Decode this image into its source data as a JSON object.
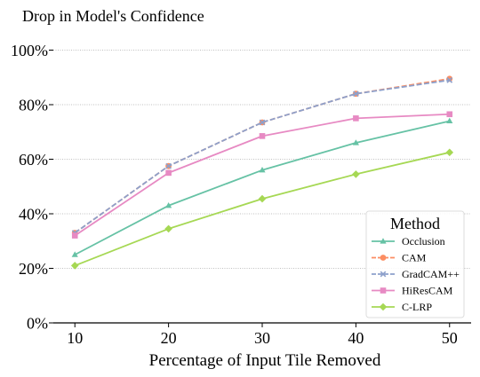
{
  "chart_data": {
    "type": "line",
    "title": "Drop in Model's Confidence",
    "xlabel": "Percentage of Input Tile Removed",
    "ylabel": "",
    "x": [
      10,
      20,
      30,
      40,
      50
    ],
    "x_ticks": [
      "10",
      "20",
      "30",
      "40",
      "50"
    ],
    "ylim": [
      0,
      100
    ],
    "y_ticks": [
      "0%",
      "20%",
      "40%",
      "60%",
      "80%",
      "100%"
    ],
    "grid": "horizontal-dotted",
    "legend": {
      "title": "Method",
      "placement": "lower-right"
    },
    "series": [
      {
        "name": "Occlusion",
        "color": "#66c2a5",
        "marker": "triangle",
        "dash": "solid",
        "values": [
          25,
          43,
          56,
          66,
          74
        ]
      },
      {
        "name": "CAM",
        "color": "#fc8d62",
        "marker": "circle",
        "dash": "dashed",
        "values": [
          33,
          57.5,
          73.5,
          84,
          89.5
        ]
      },
      {
        "name": "GradCAM++",
        "color": "#8da0cb",
        "marker": "x",
        "dash": "dashed",
        "values": [
          33,
          57.5,
          73.5,
          84,
          89
        ]
      },
      {
        "name": "HiResCAM",
        "color": "#e78ac3",
        "marker": "square",
        "dash": "solid",
        "values": [
          32,
          55,
          68.5,
          75,
          76.5
        ]
      },
      {
        "name": "C-LRP",
        "color": "#a6d854",
        "marker": "diamond",
        "dash": "solid",
        "values": [
          21,
          34.5,
          45.5,
          54.5,
          62.5
        ]
      }
    ]
  }
}
